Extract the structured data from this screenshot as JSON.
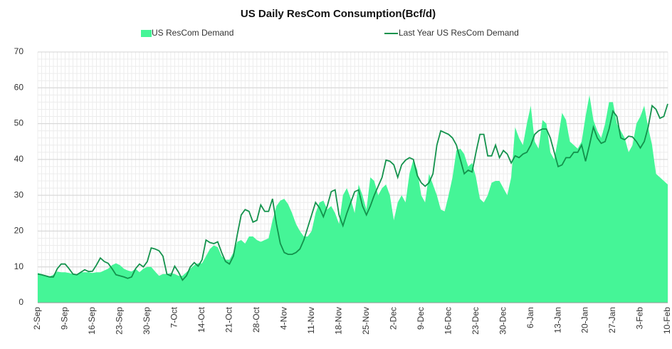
{
  "chart_data": {
    "type": "line",
    "title": "US Daily ResCom Consumption(Bcf/d)",
    "legend": "top",
    "grid": true,
    "ylim": [
      0,
      70
    ],
    "yticks": [
      0,
      10,
      20,
      30,
      40,
      50,
      60,
      70
    ],
    "categories": [
      "2-Sep",
      null,
      null,
      null,
      null,
      null,
      null,
      "9-Sep",
      null,
      null,
      null,
      null,
      null,
      null,
      "16-Sep",
      null,
      null,
      null,
      null,
      null,
      null,
      "23-Sep",
      null,
      null,
      null,
      null,
      null,
      null,
      "30-Sep",
      null,
      null,
      null,
      null,
      null,
      null,
      "7-Oct",
      null,
      null,
      null,
      null,
      null,
      null,
      "14-Oct",
      null,
      null,
      null,
      null,
      null,
      null,
      "21-Oct",
      null,
      null,
      null,
      null,
      null,
      null,
      "28-Oct",
      null,
      null,
      null,
      null,
      null,
      null,
      "4-Nov",
      null,
      null,
      null,
      null,
      null,
      null,
      "11-Nov",
      null,
      null,
      null,
      null,
      null,
      null,
      "18-Nov",
      null,
      null,
      null,
      null,
      null,
      null,
      "25-Nov",
      null,
      null,
      null,
      null,
      null,
      null,
      "2-Dec",
      null,
      null,
      null,
      null,
      null,
      null,
      "9-Dec",
      null,
      null,
      null,
      null,
      null,
      null,
      "16-Dec",
      null,
      null,
      null,
      null,
      null,
      null,
      "23-Dec",
      null,
      null,
      null,
      null,
      null,
      null,
      "30-Dec",
      null,
      null,
      null,
      null,
      null,
      null,
      "6-Jan",
      null,
      null,
      null,
      null,
      null,
      null,
      "13-Jan",
      null,
      null,
      null,
      null,
      null,
      null,
      "20-Jan",
      null,
      null,
      null,
      null,
      null,
      null,
      "27-Jan",
      null,
      null,
      null,
      null,
      null,
      null,
      "3-Feb",
      null,
      null,
      null,
      null,
      null,
      null,
      "10-Feb"
    ],
    "series": [
      {
        "name": "US ResCom Demand",
        "style": "area",
        "color": "#45f597",
        "values": [
          8.3,
          8,
          7.5,
          7.3,
          7.8,
          8.7,
          8.5,
          8.5,
          8.3,
          8,
          7.8,
          8.5,
          8.5,
          8.5,
          8.3,
          8.5,
          8.5,
          9,
          9.5,
          10.5,
          11,
          10.5,
          9.5,
          9,
          8.7,
          9.5,
          8.5,
          9.5,
          10,
          10,
          8.7,
          7.5,
          8,
          8,
          8.3,
          8,
          7.5,
          7.5,
          8.5,
          9.5,
          10.5,
          11,
          11,
          13,
          15,
          16,
          15.5,
          13,
          12,
          12,
          14,
          17,
          17.5,
          16.5,
          18.5,
          18.5,
          17.5,
          17,
          17.5,
          18,
          23,
          27,
          28.5,
          29,
          27.5,
          25,
          22,
          20,
          18.5,
          18.5,
          20,
          25,
          28,
          28.5,
          26,
          27,
          25,
          22,
          30,
          32,
          29,
          25,
          33,
          30,
          26,
          35,
          34,
          30,
          32,
          33,
          30,
          23,
          28,
          30,
          28,
          36,
          40,
          37,
          30,
          28,
          36,
          33,
          30,
          26,
          25.5,
          30,
          35,
          42.5,
          43,
          41.5,
          38,
          39,
          35,
          29,
          28,
          30,
          33.5,
          34,
          34,
          32,
          30,
          35,
          49,
          46,
          44,
          50,
          55,
          45,
          43,
          51,
          50,
          42,
          40,
          46,
          53,
          51,
          45,
          44,
          43,
          45,
          52,
          58,
          51,
          48,
          46,
          50,
          56,
          56,
          50,
          48,
          46,
          42,
          44,
          50,
          52,
          55,
          49,
          44,
          36,
          35,
          34,
          33
        ]
      },
      {
        "name": "Last Year US ResCom Demand",
        "style": "line",
        "color": "#13924c",
        "values": [
          8,
          7.8,
          7.5,
          7.2,
          7.2,
          9.5,
          10.8,
          10.8,
          9.5,
          8,
          7.8,
          8.5,
          9.2,
          8.7,
          8.8,
          10.5,
          12.5,
          11.5,
          11,
          9.5,
          7.8,
          7.5,
          7.2,
          6.8,
          7.2,
          9.5,
          10.8,
          10,
          11.5,
          15.3,
          15,
          14.5,
          13,
          8,
          7.5,
          10.2,
          8.5,
          6.3,
          7.5,
          10,
          11.2,
          10.2,
          12,
          17.5,
          16.8,
          16.5,
          17,
          14,
          11.5,
          10.8,
          13,
          19,
          24.5,
          26,
          25.5,
          22.5,
          23,
          27.3,
          25.5,
          25.5,
          29,
          22,
          16.5,
          14,
          13.5,
          13.5,
          14,
          15,
          17.5,
          21,
          24.5,
          28,
          26.5,
          24,
          27,
          31,
          31.5,
          24.5,
          21.5,
          25,
          28,
          31,
          31.5,
          27,
          24.5,
          27,
          30,
          32.5,
          35,
          39.8,
          39.5,
          38.5,
          35,
          38.5,
          39.8,
          40.5,
          40,
          35.5,
          33.5,
          32.5,
          33.5,
          36,
          44,
          48,
          47.5,
          47,
          46,
          44,
          40,
          36,
          37,
          36.5,
          42,
          47,
          47,
          41,
          41,
          44,
          40.5,
          42.5,
          41.5,
          39,
          41,
          40.5,
          41.5,
          42,
          44,
          47,
          48,
          48.5,
          48.5,
          46,
          42,
          38,
          38.5,
          40.5,
          40.5,
          42,
          42,
          44,
          39.5,
          44,
          49,
          46,
          44.5,
          45,
          48.5,
          53.5,
          52,
          46,
          45.5,
          46.5,
          46.3,
          45,
          43.2,
          45,
          49,
          55,
          54,
          51.5,
          52,
          55.5
        ]
      }
    ]
  }
}
